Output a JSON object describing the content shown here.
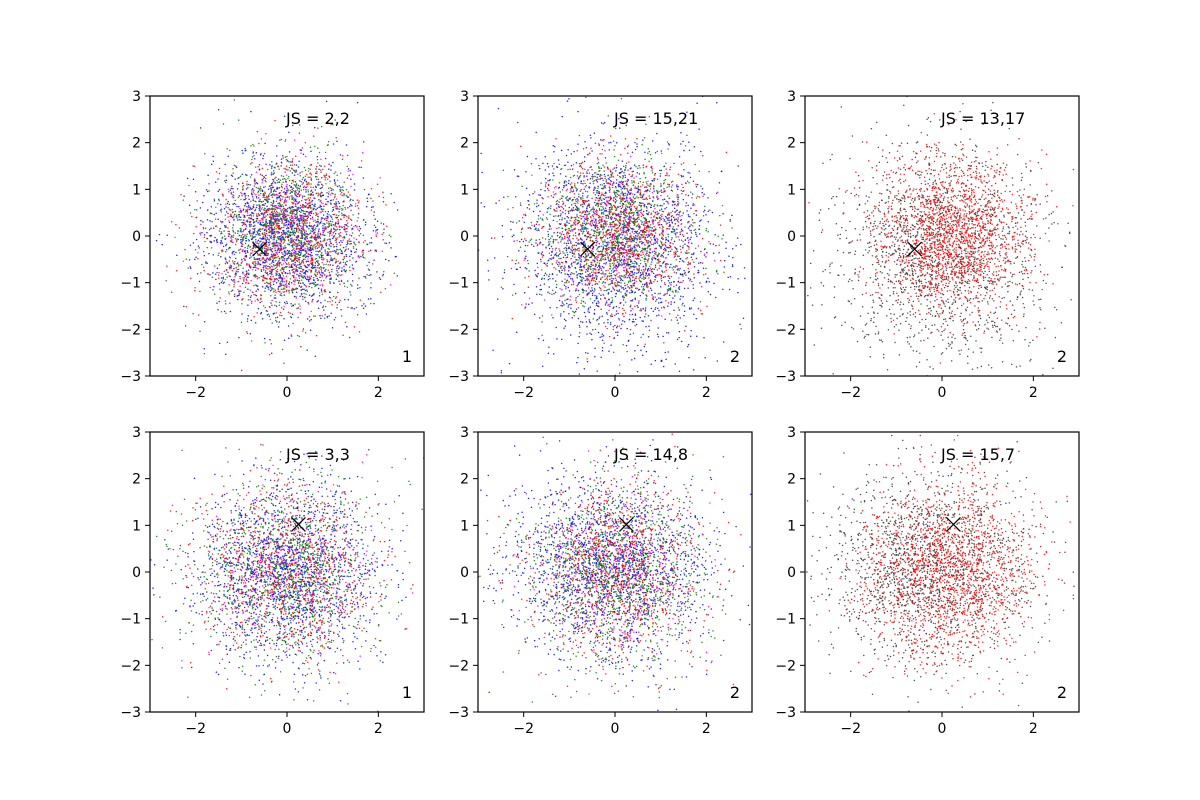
{
  "figure": {
    "background": "#ffffff"
  },
  "chart_data": [
    {
      "type": "scatter",
      "panel": "row1-col1",
      "xlim": [
        -3,
        3
      ],
      "ylim": [
        -3,
        3
      ],
      "xticks": [
        -2,
        0,
        2
      ],
      "yticks": [
        -3,
        -2,
        -1,
        0,
        1,
        2,
        3
      ],
      "grid": false,
      "annotation": "JS = 2,2",
      "corner_label": "1",
      "marker": {
        "x": -0.6,
        "y": -0.28,
        "symbol": "x",
        "color": "#000000"
      },
      "series": [
        {
          "color": "#0000ff",
          "count": 1600,
          "center": [
            0.0,
            0.0
          ],
          "spread": [
            0.9,
            0.85
          ]
        },
        {
          "color": "#008000",
          "count": 1100,
          "center": [
            0.0,
            0.05
          ],
          "spread": [
            0.8,
            0.8
          ]
        },
        {
          "color": "#ff0000",
          "count": 1000,
          "center": [
            0.0,
            0.0
          ],
          "spread": [
            0.85,
            0.85
          ]
        },
        {
          "color": "#ff00ff",
          "count": 280,
          "center": [
            0.0,
            0.0
          ],
          "spread": [
            0.8,
            0.8
          ]
        }
      ]
    },
    {
      "type": "scatter",
      "panel": "row1-col2",
      "xlim": [
        -3,
        3
      ],
      "ylim": [
        -3,
        3
      ],
      "xticks": [
        -2,
        0,
        2
      ],
      "yticks": [
        -3,
        -2,
        -1,
        0,
        1,
        2,
        3
      ],
      "grid": false,
      "annotation": "JS = 15,21",
      "corner_label": "2",
      "marker": {
        "x": -0.6,
        "y": -0.28,
        "symbol": "x",
        "color": "#000000"
      },
      "series": [
        {
          "color": "#0000ff",
          "count": 1800,
          "center": [
            0.0,
            -0.2
          ],
          "spread": [
            1.1,
            1.1
          ]
        },
        {
          "color": "#008000",
          "count": 1100,
          "center": [
            0.0,
            0.1
          ],
          "spread": [
            0.85,
            0.85
          ]
        },
        {
          "color": "#ff0000",
          "count": 1100,
          "center": [
            0.1,
            0.0
          ],
          "spread": [
            0.85,
            0.85
          ]
        },
        {
          "color": "#ff00ff",
          "count": 250,
          "center": [
            0.0,
            0.0
          ],
          "spread": [
            0.8,
            0.8
          ]
        }
      ]
    },
    {
      "type": "scatter",
      "panel": "row1-col3",
      "xlim": [
        -3,
        3
      ],
      "ylim": [
        -3,
        3
      ],
      "xticks": [
        -2,
        0,
        2
      ],
      "yticks": [
        -3,
        -2,
        -1,
        0,
        1,
        2,
        3
      ],
      "grid": false,
      "annotation": "JS = 13,17",
      "corner_label": "2",
      "marker": {
        "x": -0.6,
        "y": -0.28,
        "symbol": "x",
        "color": "#000000"
      },
      "series": [
        {
          "color": "#333333",
          "count": 1600,
          "center": [
            -0.1,
            -0.3
          ],
          "spread": [
            1.1,
            1.1
          ]
        },
        {
          "color": "#ff0000",
          "count": 1700,
          "center": [
            0.2,
            0.05
          ],
          "spread": [
            0.85,
            0.85
          ]
        }
      ]
    },
    {
      "type": "scatter",
      "panel": "row2-col1",
      "xlim": [
        -3,
        3
      ],
      "ylim": [
        -3,
        3
      ],
      "xticks": [
        -2,
        0,
        2
      ],
      "yticks": [
        -3,
        -2,
        -1,
        0,
        1,
        2,
        3
      ],
      "grid": false,
      "annotation": "JS = 3,3",
      "corner_label": "1",
      "marker": {
        "x": 0.25,
        "y": 1.02,
        "symbol": "x",
        "color": "#000000"
      },
      "series": [
        {
          "color": "#0000ff",
          "count": 1600,
          "center": [
            0.0,
            0.0
          ],
          "spread": [
            1.0,
            0.95
          ]
        },
        {
          "color": "#008000",
          "count": 1100,
          "center": [
            0.0,
            0.0
          ],
          "spread": [
            0.95,
            0.95
          ]
        },
        {
          "color": "#ff0000",
          "count": 1000,
          "center": [
            0.0,
            0.0
          ],
          "spread": [
            1.0,
            0.95
          ]
        },
        {
          "color": "#ff00ff",
          "count": 250,
          "center": [
            0.0,
            0.0
          ],
          "spread": [
            0.9,
            0.9
          ]
        }
      ]
    },
    {
      "type": "scatter",
      "panel": "row2-col2",
      "xlim": [
        -3,
        3
      ],
      "ylim": [
        -3,
        3
      ],
      "xticks": [
        -2,
        0,
        2
      ],
      "yticks": [
        -3,
        -2,
        -1,
        0,
        1,
        2,
        3
      ],
      "grid": false,
      "annotation": "JS = 14,8",
      "corner_label": "2",
      "marker": {
        "x": 0.25,
        "y": 1.02,
        "symbol": "x",
        "color": "#000000"
      },
      "series": [
        {
          "color": "#0000ff",
          "count": 1700,
          "center": [
            -0.1,
            0.1
          ],
          "spread": [
            1.05,
            1.0
          ]
        },
        {
          "color": "#008000",
          "count": 1150,
          "center": [
            0.0,
            0.0
          ],
          "spread": [
            0.95,
            0.95
          ]
        },
        {
          "color": "#ff0000",
          "count": 1100,
          "center": [
            0.0,
            0.0
          ],
          "spread": [
            0.95,
            0.95
          ]
        },
        {
          "color": "#ff00ff",
          "count": 250,
          "center": [
            0.0,
            0.0
          ],
          "spread": [
            0.9,
            0.9
          ]
        }
      ]
    },
    {
      "type": "scatter",
      "panel": "row2-col3",
      "xlim": [
        -3,
        3
      ],
      "ylim": [
        -3,
        3
      ],
      "xticks": [
        -2,
        0,
        2
      ],
      "yticks": [
        -3,
        -2,
        -1,
        0,
        1,
        2,
        3
      ],
      "grid": false,
      "annotation": "JS = 15,7",
      "corner_label": "2",
      "marker": {
        "x": 0.25,
        "y": 1.02,
        "symbol": "x",
        "color": "#000000"
      },
      "series": [
        {
          "color": "#333333",
          "count": 1600,
          "center": [
            -0.3,
            0.1
          ],
          "spread": [
            1.05,
            1.05
          ]
        },
        {
          "color": "#ff0000",
          "count": 1750,
          "center": [
            0.1,
            0.0
          ],
          "spread": [
            0.95,
            0.95
          ]
        }
      ]
    }
  ]
}
